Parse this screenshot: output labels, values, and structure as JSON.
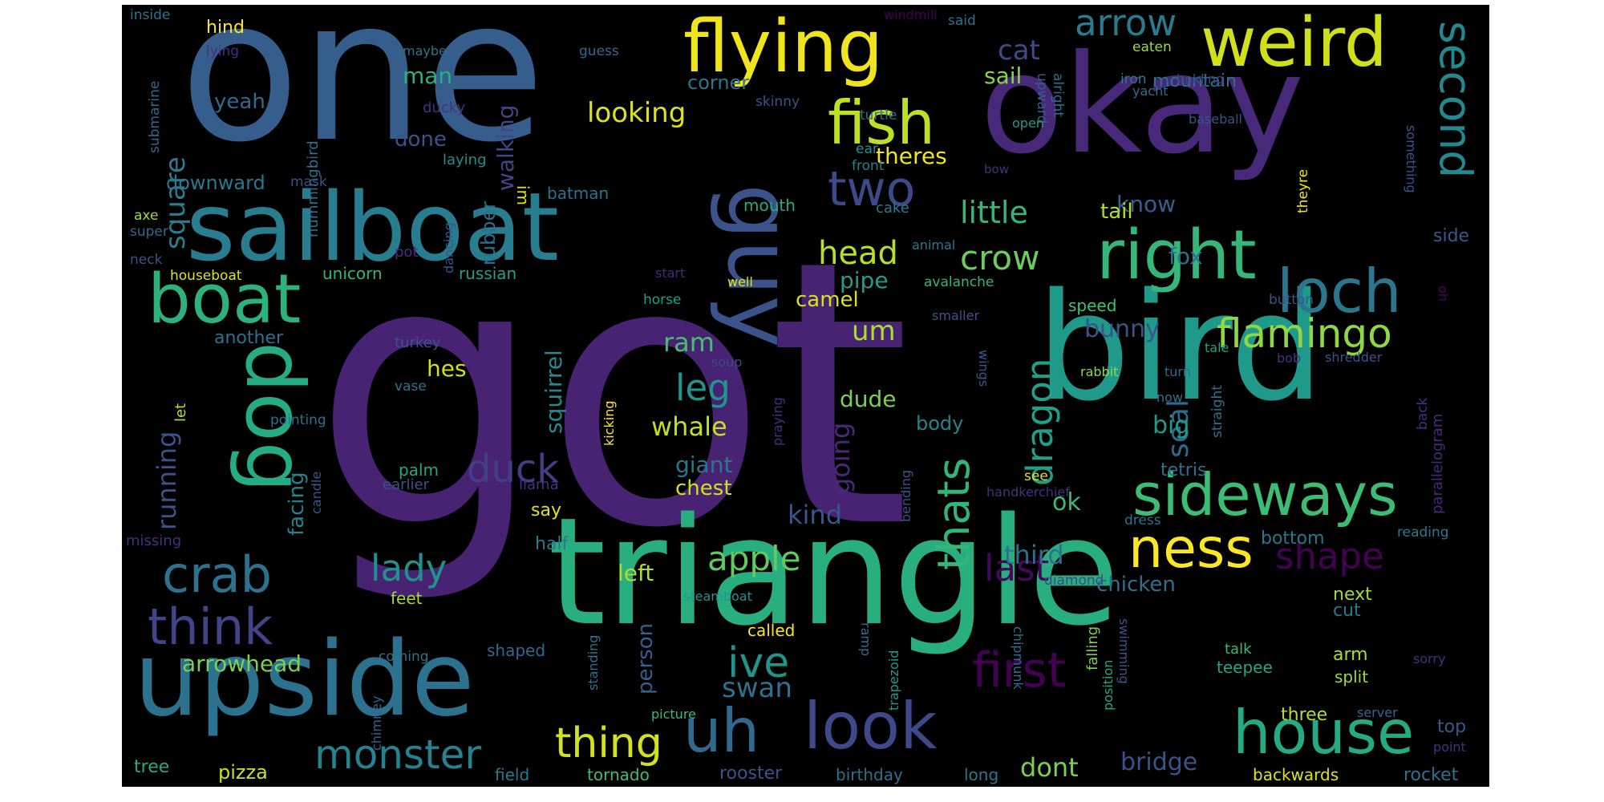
{
  "words": [
    {
      "text": "got",
      "color": "#482374"
    },
    {
      "text": "one",
      "color": "#355e8d"
    },
    {
      "text": "triangle",
      "color": "#29af7f"
    },
    {
      "text": "okay",
      "color": "#482878"
    },
    {
      "text": "bird",
      "color": "#1f9a8a"
    },
    {
      "text": "sailboat",
      "color": "#287d8e"
    },
    {
      "text": "upside",
      "color": "#2c718e"
    },
    {
      "text": "flying",
      "color": "#f0e51c"
    },
    {
      "text": "weird",
      "color": "#d0e11c"
    },
    {
      "text": "guy",
      "color": "#3b528b"
    },
    {
      "text": "dog",
      "color": "#25ac82"
    },
    {
      "text": "boat",
      "color": "#2db27d"
    },
    {
      "text": "right",
      "color": "#35b779"
    },
    {
      "text": "loch",
      "color": "#2a768e"
    },
    {
      "text": "house",
      "color": "#25ab82"
    },
    {
      "text": "look",
      "color": "#3f4889"
    },
    {
      "text": "uh",
      "color": "#31688e"
    },
    {
      "text": "fish",
      "color": "#bddf26"
    },
    {
      "text": "sideways",
      "color": "#3dbc74"
    },
    {
      "text": "ness",
      "color": "#fde725"
    },
    {
      "text": "crab",
      "color": "#2c718e"
    },
    {
      "text": "think",
      "color": "#414487"
    },
    {
      "text": "monster",
      "color": "#26828e"
    },
    {
      "text": "first",
      "color": "#440154"
    },
    {
      "text": "thing",
      "color": "#d2e21b"
    },
    {
      "text": "flamingo",
      "color": "#8fd744"
    },
    {
      "text": "arrow",
      "color": "#287c8e"
    },
    {
      "text": "two",
      "color": "#3e4989"
    },
    {
      "text": "second",
      "color": "#23898e"
    },
    {
      "text": "thats",
      "color": "#31b57b"
    },
    {
      "text": "dragon",
      "color": "#1fa088"
    },
    {
      "text": "ive",
      "color": "#1f958b"
    },
    {
      "text": "lady",
      "color": "#21918c"
    },
    {
      "text": "duck",
      "color": "#433e85"
    },
    {
      "text": "apple",
      "color": "#60ca60"
    },
    {
      "text": "shape",
      "color": "#440154"
    },
    {
      "text": "last",
      "color": "#46085c"
    },
    {
      "text": "leg",
      "color": "#1f968b"
    },
    {
      "text": "crow",
      "color": "#6ccd5a"
    },
    {
      "text": "little",
      "color": "#35b779"
    },
    {
      "text": "head",
      "color": "#bade28"
    },
    {
      "text": "square",
      "color": "#277f8e"
    },
    {
      "text": "running",
      "color": "#3b528b"
    },
    {
      "text": "cat",
      "color": "#3e4a89"
    },
    {
      "text": "looking",
      "color": "#dde318"
    },
    {
      "text": "going",
      "color": "#482979"
    },
    {
      "text": "swan",
      "color": "#2c728e"
    },
    {
      "text": "dont",
      "color": "#7ad151"
    },
    {
      "text": "seal",
      "color": "#30698e"
    },
    {
      "text": "um",
      "color": "#addc30"
    },
    {
      "text": "bunny",
      "color": "#3b528b"
    },
    {
      "text": "third",
      "color": "#2d708e"
    },
    {
      "text": "whale",
      "color": "#c2df23"
    },
    {
      "text": "kind",
      "color": "#38588c"
    },
    {
      "text": "bridge",
      "color": "#3b528b"
    },
    {
      "text": "ram",
      "color": "#46c06f"
    },
    {
      "text": "walking",
      "color": "#414487"
    },
    {
      "text": "theres",
      "color": "#f1e51d"
    },
    {
      "text": "know",
      "color": "#355f8d"
    },
    {
      "text": "squirrel",
      "color": "#238a8d"
    },
    {
      "text": "rubber",
      "color": "#2d708e"
    },
    {
      "text": "man",
      "color": "#2ab07f"
    },
    {
      "text": "done",
      "color": "#3b528b"
    },
    {
      "text": "facing",
      "color": "#26828e"
    },
    {
      "text": "big",
      "color": "#1e9b8a"
    },
    {
      "text": "fox",
      "color": "#2c728e"
    },
    {
      "text": "ok",
      "color": "#3aba76"
    },
    {
      "text": "pipe",
      "color": "#1f9e89"
    },
    {
      "text": "dude",
      "color": "#7ad151"
    },
    {
      "text": "arrowhead",
      "color": "#7ad151"
    },
    {
      "text": "left",
      "color": "#addc30"
    },
    {
      "text": "giant",
      "color": "#2a788e"
    },
    {
      "text": "chest",
      "color": "#d0e11c"
    },
    {
      "text": "pizza",
      "color": "#c8e020"
    },
    {
      "text": "person",
      "color": "#355f8d"
    },
    {
      "text": "camel",
      "color": "#d8e219"
    },
    {
      "text": "tail",
      "color": "#b5de2b"
    },
    {
      "text": "chicken",
      "color": "#2d708e"
    },
    {
      "text": "hes",
      "color": "#d0e11c"
    },
    {
      "text": "yeah",
      "color": "#31688e"
    },
    {
      "text": "corner",
      "color": "#2a788e"
    },
    {
      "text": "sail",
      "color": "#86d549"
    },
    {
      "text": "mountain",
      "color": "#2c728e"
    },
    {
      "text": "downward",
      "color": "#2a788e"
    },
    {
      "text": "tetris",
      "color": "#2d708e"
    },
    {
      "text": "bottom",
      "color": "#2a768e"
    },
    {
      "text": "say",
      "color": "#dfe318"
    },
    {
      "text": "body",
      "color": "#25848e"
    },
    {
      "text": "half",
      "color": "#2a788e"
    },
    {
      "text": "hind",
      "color": "#fde725"
    },
    {
      "text": "next",
      "color": "#a0da39"
    },
    {
      "text": "another",
      "color": "#2d708e"
    },
    {
      "text": "rocket",
      "color": "#2c728e"
    },
    {
      "text": "top",
      "color": "#38588c"
    },
    {
      "text": "three",
      "color": "#b5de2b"
    },
    {
      "text": "cut",
      "color": "#2a788e"
    },
    {
      "text": "arm",
      "color": "#addc30"
    },
    {
      "text": "side",
      "color": "#38588c"
    },
    {
      "text": "speed",
      "color": "#44bf70"
    },
    {
      "text": "russian",
      "color": "#1fa188"
    },
    {
      "text": "unicorn",
      "color": "#31b57b"
    },
    {
      "text": "rooster",
      "color": "#3b528b"
    },
    {
      "text": "backwards",
      "color": "#dde318"
    },
    {
      "text": "tree",
      "color": "#25ab82"
    },
    {
      "text": "field",
      "color": "#2a788e"
    },
    {
      "text": "tornado",
      "color": "#3dbc74"
    },
    {
      "text": "birthday",
      "color": "#2d708e"
    },
    {
      "text": "long",
      "color": "#2a788e"
    },
    {
      "text": "teepee",
      "color": "#22a785"
    },
    {
      "text": "split",
      "color": "#9bd93c"
    },
    {
      "text": "talk",
      "color": "#3aba76"
    },
    {
      "text": "shaped",
      "color": "#31688e"
    },
    {
      "text": "called",
      "color": "#fde725"
    },
    {
      "text": "feet",
      "color": "#a8db34"
    },
    {
      "text": "palm",
      "color": "#22a884"
    },
    {
      "text": "llama",
      "color": "#46327e"
    },
    {
      "text": "earlier",
      "color": "#3b528b"
    },
    {
      "text": "cake",
      "color": "#287c8e"
    },
    {
      "text": "batman",
      "color": "#2c728e"
    },
    {
      "text": "im",
      "color": "#dfe318"
    },
    {
      "text": "mouth",
      "color": "#25ac82"
    },
    {
      "text": "ear",
      "color": "#1f948c"
    },
    {
      "text": "front",
      "color": "#26828e"
    },
    {
      "text": "super",
      "color": "#31688e"
    },
    {
      "text": "axe",
      "color": "#9bd93c"
    },
    {
      "text": "neck",
      "color": "#3b528b"
    },
    {
      "text": "pot",
      "color": "#46307e"
    },
    {
      "text": "dancing",
      "color": "#39558c"
    },
    {
      "text": "laying",
      "color": "#228c8d"
    },
    {
      "text": "ducky",
      "color": "#46337e"
    },
    {
      "text": "hummingbird",
      "color": "#2d708e"
    },
    {
      "text": "mask",
      "color": "#3b528b"
    },
    {
      "text": "skinny",
      "color": "#3b528b"
    },
    {
      "text": "turtle",
      "color": "#2c728e"
    },
    {
      "text": "guess",
      "color": "#31688e"
    },
    {
      "text": "maybe",
      "color": "#2c728e"
    },
    {
      "text": "lying",
      "color": "#46307e"
    },
    {
      "text": "inside",
      "color": "#2c728e"
    },
    {
      "text": "windmill",
      "color": "#440154"
    },
    {
      "text": "said",
      "color": "#2c728e"
    },
    {
      "text": "eaten",
      "color": "#a0da39"
    },
    {
      "text": "yacht",
      "color": "#2d708e"
    },
    {
      "text": "holding",
      "color": "#3e4989"
    },
    {
      "text": "iron",
      "color": "#2a788e"
    },
    {
      "text": "alright",
      "color": "#2d708e"
    },
    {
      "text": "upward",
      "color": "#355f8d"
    },
    {
      "text": "open",
      "color": "#1f9a8a"
    },
    {
      "text": "baseball",
      "color": "#3b528b"
    },
    {
      "text": "bow",
      "color": "#46307e"
    },
    {
      "text": "something",
      "color": "#3b528b"
    },
    {
      "text": "theyre",
      "color": "#f1e51d"
    },
    {
      "text": "submarine",
      "color": "#31688e"
    },
    {
      "text": "houseboat",
      "color": "#dfe318"
    },
    {
      "text": "horse",
      "color": "#1fa088"
    },
    {
      "text": "start",
      "color": "#482979"
    },
    {
      "text": "well",
      "color": "#dde318"
    },
    {
      "text": "animal",
      "color": "#2a788e"
    },
    {
      "text": "avalanche",
      "color": "#31b57b"
    },
    {
      "text": "smaller",
      "color": "#3b528b"
    },
    {
      "text": "button",
      "color": "#39558c"
    },
    {
      "text": "oh",
      "color": "#46085c"
    },
    {
      "text": "parallelogram",
      "color": "#482979"
    },
    {
      "text": "shredder",
      "color": "#3b528b"
    },
    {
      "text": "bob",
      "color": "#46307e"
    },
    {
      "text": "rabbit",
      "color": "#8fd744"
    },
    {
      "text": "soup",
      "color": "#3e4989"
    },
    {
      "text": "wings",
      "color": "#39558c"
    },
    {
      "text": "praying",
      "color": "#46307e"
    },
    {
      "text": "turkey",
      "color": "#3b528b"
    },
    {
      "text": "vase",
      "color": "#2c728e"
    },
    {
      "text": "let",
      "color": "#bddf26"
    },
    {
      "text": "pointing",
      "color": "#2c728e"
    },
    {
      "text": "candle",
      "color": "#38588c"
    },
    {
      "text": "missing",
      "color": "#46307e"
    },
    {
      "text": "kicking",
      "color": "#fde725"
    },
    {
      "text": "bending",
      "color": "#3b528b"
    },
    {
      "text": "handkerchief",
      "color": "#46307e"
    },
    {
      "text": "see",
      "color": "#dde318"
    },
    {
      "text": "now",
      "color": "#2c728e"
    },
    {
      "text": "turn",
      "color": "#31688e"
    },
    {
      "text": "tale",
      "color": "#1fa088"
    },
    {
      "text": "straight",
      "color": "#2c728e"
    },
    {
      "text": "back",
      "color": "#46307e"
    },
    {
      "text": "dress",
      "color": "#2d708e"
    },
    {
      "text": "reading",
      "color": "#2a788e"
    },
    {
      "text": "diamond",
      "color": "#3e4989"
    },
    {
      "text": "steamboat",
      "color": "#1f958b"
    },
    {
      "text": "coming",
      "color": "#2c728e"
    },
    {
      "text": "ramp",
      "color": "#2d708e"
    },
    {
      "text": "trapezoid",
      "color": "#1f9a8a"
    },
    {
      "text": "chipmunk",
      "color": "#2c728e"
    },
    {
      "text": "falling",
      "color": "#7ad151"
    },
    {
      "text": "position",
      "color": "#22a785"
    },
    {
      "text": "swimming",
      "color": "#3b528b"
    },
    {
      "text": "sorry",
      "color": "#46307e"
    },
    {
      "text": "point",
      "color": "#46307e"
    },
    {
      "text": "server",
      "color": "#31688e"
    },
    {
      "text": "picture",
      "color": "#3aba76"
    },
    {
      "text": "chimney",
      "color": "#31688e"
    },
    {
      "text": "standing",
      "color": "#2c728e"
    }
  ]
}
